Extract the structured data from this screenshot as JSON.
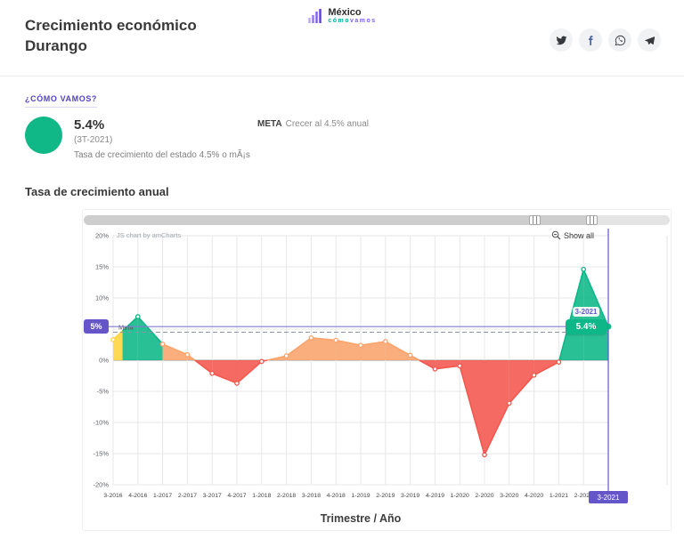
{
  "brand": {
    "top": "México",
    "sub_teal": "cómo",
    "sub_purple": "vamos"
  },
  "header": {
    "title_line1": "Crecimiento económico",
    "title_line2": "Durango"
  },
  "social": [
    {
      "network": "twitter"
    },
    {
      "network": "facebook"
    },
    {
      "network": "whatsapp"
    },
    {
      "network": "telegram"
    }
  ],
  "kpi": {
    "section_label": "¿CÓMO VAMOS?",
    "value": "5.4%",
    "period": "(3T-2021)",
    "description": "Tasa de crecimiento del estado 4.5% o mÃ¡s",
    "meta_label": "META",
    "meta_text": "Crecer al 4.5% anual"
  },
  "chart_section": {
    "title": "Tasa de crecimiento anual"
  },
  "chart_controls": {
    "show_all": "Show all",
    "credit": "JS chart by amCharts"
  },
  "chart_overlays": {
    "value_badge": "5%",
    "meta_line_label": "Meta",
    "cursor_category": "3-2021",
    "tooltip_category": "3-2021",
    "tooltip_value": "5.4%"
  },
  "chart_data": {
    "type": "area",
    "title": "Tasa de crecimiento anual",
    "xlabel": "Trimestre / Año",
    "ylabel": "",
    "ylim": [
      -20,
      20
    ],
    "ytick_step": 5,
    "ytick_suffix": "%",
    "grid": "on",
    "legend": "off",
    "meta_value": 4.5,
    "current_value": 5.4,
    "categories": [
      "3-2016",
      "4-2016",
      "1-2017",
      "2-2017",
      "3-2017",
      "4-2017",
      "1-2018",
      "2-2018",
      "3-2018",
      "4-2018",
      "1-2019",
      "2-2019",
      "3-2019",
      "4-2019",
      "1-2020",
      "2-2020",
      "3-2020",
      "4-2020",
      "1-2021",
      "2-2021",
      "3-2021"
    ],
    "values": [
      3.3,
      7.0,
      2.6,
      0.9,
      -2.1,
      -3.7,
      -0.2,
      0.7,
      3.6,
      3.2,
      2.4,
      3.0,
      0.8,
      -1.4,
      -0.9,
      -15.2,
      -6.9,
      -2.4,
      -0.3,
      14.6,
      5.4
    ],
    "point_colors": [
      "yellow",
      "green",
      "orange",
      "orange",
      "red",
      "red",
      "red",
      "orange",
      "orange",
      "orange",
      "orange",
      "orange",
      "orange",
      "red",
      "red",
      "red",
      "red",
      "red",
      "red",
      "green",
      "green"
    ],
    "palette": {
      "yellow": "#ffd43b",
      "green": "#0db788",
      "orange": "#faa36b",
      "red": "#f4574d",
      "meta_line": "#8a94a6",
      "value_line": "#837bd4",
      "cursor": "#6456c8",
      "grid": "#e7e7e7",
      "zero": "#9b9b9b"
    }
  }
}
